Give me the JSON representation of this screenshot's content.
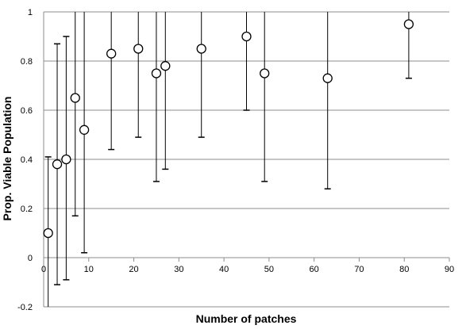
{
  "chart_data": {
    "type": "scatter",
    "title": "",
    "xlabel": "Number of patches",
    "ylabel": "Prop. Viable Population",
    "xlim": [
      0,
      90
    ],
    "ylim": [
      -0.2,
      1
    ],
    "xticks": [
      0,
      10,
      20,
      30,
      40,
      50,
      60,
      70,
      80,
      90
    ],
    "yticks": [
      -0.2,
      0,
      0.2,
      0.4,
      0.6,
      0.8,
      1
    ],
    "xtick_labels": [
      "0",
      "10",
      "20",
      "30",
      "40",
      "50",
      "60",
      "70",
      "80",
      "90"
    ],
    "ytick_labels": [
      "-0.2",
      "0",
      "0.2",
      "0.4",
      "0.6",
      "0.8",
      "1"
    ],
    "grid": "horizontal",
    "marker": "open-circle",
    "points": [
      {
        "x": 1,
        "y": 0.1,
        "lower": -0.2,
        "upper": 0.41
      },
      {
        "x": 3,
        "y": 0.38,
        "lower": -0.11,
        "upper": 0.87
      },
      {
        "x": 5,
        "y": 0.4,
        "lower": -0.09,
        "upper": 0.9
      },
      {
        "x": 7,
        "y": 0.65,
        "lower": 0.17,
        "upper": 1.0
      },
      {
        "x": 9,
        "y": 0.52,
        "lower": 0.02,
        "upper": 1.0
      },
      {
        "x": 15,
        "y": 0.83,
        "lower": 0.44,
        "upper": 1.0
      },
      {
        "x": 21,
        "y": 0.85,
        "lower": 0.49,
        "upper": 1.0
      },
      {
        "x": 25,
        "y": 0.75,
        "lower": 0.31,
        "upper": 1.0
      },
      {
        "x": 27,
        "y": 0.78,
        "lower": 0.36,
        "upper": 1.0
      },
      {
        "x": 35,
        "y": 0.85,
        "lower": 0.49,
        "upper": 1.0
      },
      {
        "x": 45,
        "y": 0.9,
        "lower": 0.6,
        "upper": 1.0
      },
      {
        "x": 49,
        "y": 0.75,
        "lower": 0.31,
        "upper": 1.0
      },
      {
        "x": 63,
        "y": 0.73,
        "lower": 0.28,
        "upper": 1.0
      },
      {
        "x": 81,
        "y": 0.95,
        "lower": 0.73,
        "upper": 1.0
      }
    ]
  }
}
